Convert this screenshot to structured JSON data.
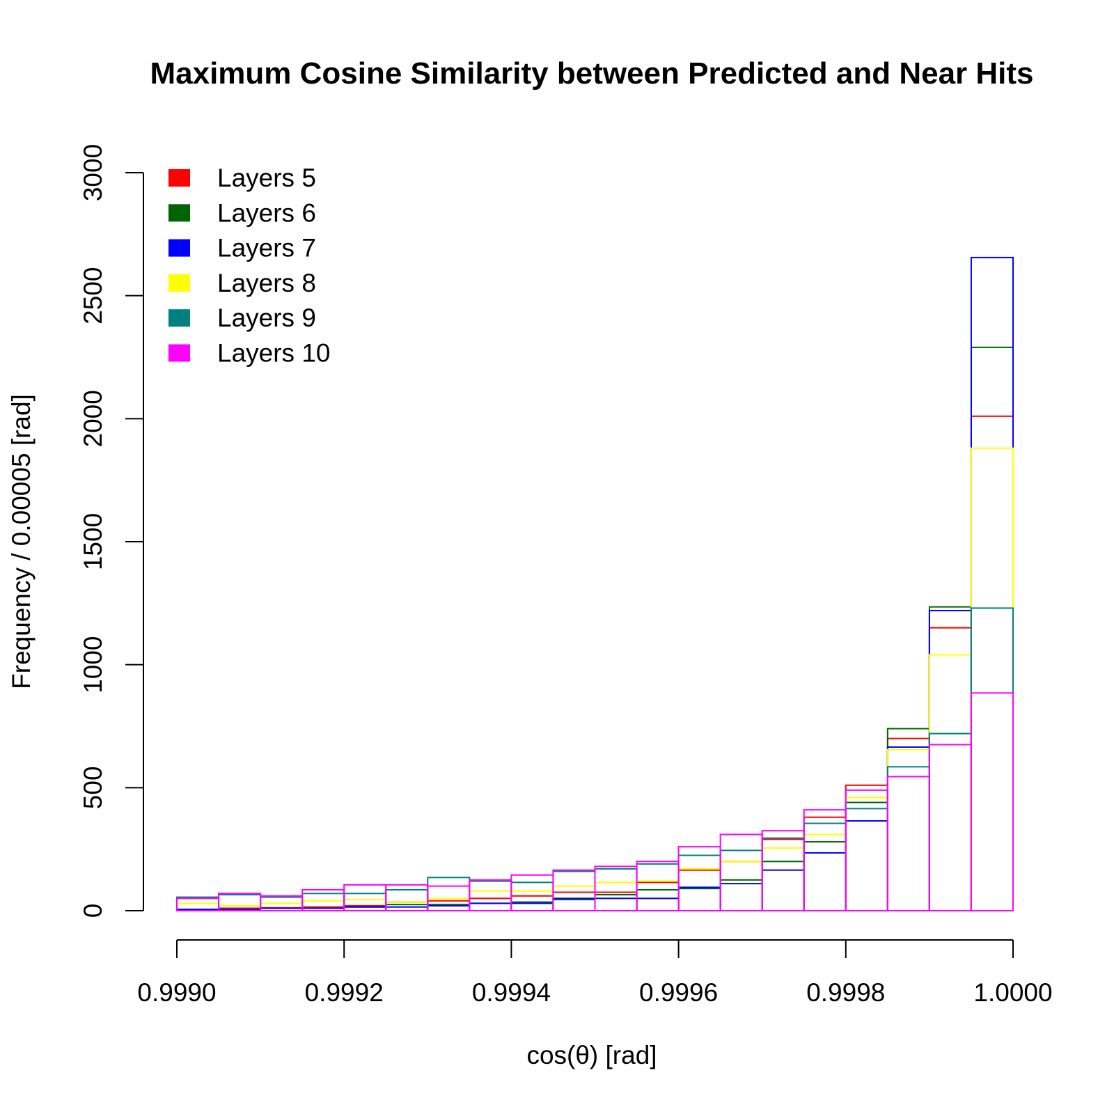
{
  "chart_data": {
    "type": "bar",
    "subtype": "histogram-step-outline",
    "title": "Maximum Cosine Similarity between Predicted and Near Hits",
    "xlabel": "cos(θ)  [rad]",
    "ylabel": "Frequency / 0.00005 [rad]",
    "xlim": [
      0.999,
      1.0
    ],
    "ylim": [
      0,
      3000
    ],
    "x_ticks": [
      0.999,
      0.9992,
      0.9994,
      0.9996,
      0.9998,
      1.0
    ],
    "x_tick_labels": [
      "0.9990",
      "0.9992",
      "0.9994",
      "0.9996",
      "0.9998",
      "1.0000"
    ],
    "y_ticks": [
      0,
      500,
      1000,
      1500,
      2000,
      2500,
      3000
    ],
    "y_tick_labels": [
      "0",
      "500",
      "1000",
      "1500",
      "2000",
      "2500",
      "3000"
    ],
    "grid": false,
    "legend_position": "top-left",
    "bin_edges": [
      0.999,
      0.99905,
      0.9991,
      0.99915,
      0.9992,
      0.99925,
      0.9993,
      0.99935,
      0.9994,
      0.99945,
      0.9995,
      0.99955,
      0.9996,
      0.99965,
      0.9997,
      0.99975,
      0.9998,
      0.99985,
      0.9999,
      0.99995,
      1.0
    ],
    "series": [
      {
        "name": "Layers 5",
        "color": "#ff0000",
        "values": [
          5,
          10,
          12,
          15,
          20,
          35,
          40,
          50,
          60,
          75,
          75,
          115,
          165,
          200,
          290,
          380,
          510,
          700,
          1150,
          2010
        ]
      },
      {
        "name": "Layers 6",
        "color": "#006400",
        "values": [
          5,
          5,
          10,
          10,
          15,
          25,
          25,
          30,
          35,
          45,
          65,
          85,
          90,
          125,
          200,
          280,
          440,
          740,
          1235,
          2290
        ]
      },
      {
        "name": "Layers 7",
        "color": "#0000ff",
        "values": [
          5,
          5,
          10,
          10,
          15,
          15,
          20,
          30,
          30,
          50,
          50,
          50,
          95,
          110,
          165,
          235,
          365,
          665,
          1220,
          2655
        ]
      },
      {
        "name": "Layers 8",
        "color": "#ffff00",
        "values": [
          30,
          20,
          30,
          40,
          45,
          35,
          50,
          80,
          80,
          100,
          115,
          120,
          170,
          200,
          255,
          310,
          460,
          655,
          1040,
          1880
        ]
      },
      {
        "name": "Layers 9",
        "color": "#008080",
        "values": [
          55,
          65,
          55,
          70,
          70,
          85,
          135,
          120,
          115,
          160,
          170,
          190,
          225,
          245,
          295,
          355,
          415,
          585,
          720,
          1230
        ]
      },
      {
        "name": "Layers 10",
        "color": "#ff00ff",
        "values": [
          50,
          70,
          60,
          85,
          105,
          105,
          100,
          125,
          145,
          165,
          180,
          200,
          260,
          310,
          325,
          410,
          490,
          545,
          675,
          885
        ]
      }
    ]
  }
}
